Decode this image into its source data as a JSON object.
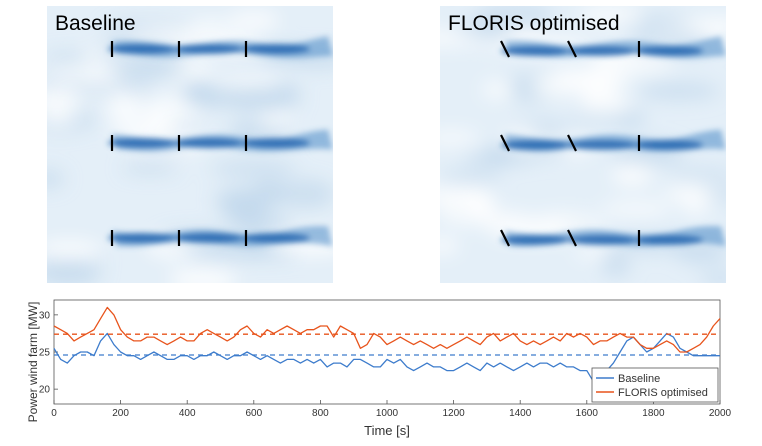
{
  "panels": {
    "left_title": "Baseline",
    "right_title": "FLORIS optimised"
  },
  "colors": {
    "baseline": "#3d7ccc",
    "optimised": "#e8541c",
    "wake": "#2a6fb8"
  },
  "chart_data": {
    "type": "line",
    "title": "",
    "xlabel": "Time [s]",
    "ylabel": "Power wind farm [MW]",
    "xlim": [
      0,
      2000
    ],
    "ylim": [
      18,
      32
    ],
    "xticks": [
      0,
      200,
      400,
      600,
      800,
      1000,
      1200,
      1400,
      1600,
      1800,
      2000
    ],
    "yticks": [
      20,
      25,
      30
    ],
    "legend": {
      "placement": "bottom-right",
      "entries": [
        "Baseline",
        "FLORIS optimised"
      ]
    },
    "means": {
      "Baseline": 24.6,
      "FLORIS optimised": 27.4
    },
    "series": [
      {
        "name": "Baseline",
        "x": [
          0,
          20,
          40,
          60,
          80,
          100,
          120,
          140,
          160,
          180,
          200,
          220,
          240,
          260,
          280,
          300,
          320,
          340,
          360,
          380,
          400,
          420,
          440,
          460,
          480,
          500,
          520,
          540,
          560,
          580,
          600,
          620,
          640,
          660,
          680,
          700,
          720,
          740,
          760,
          780,
          800,
          820,
          840,
          860,
          880,
          900,
          920,
          940,
          960,
          980,
          1000,
          1020,
          1040,
          1060,
          1080,
          1100,
          1120,
          1140,
          1160,
          1180,
          1200,
          1220,
          1240,
          1260,
          1280,
          1300,
          1320,
          1340,
          1360,
          1380,
          1400,
          1420,
          1440,
          1460,
          1480,
          1500,
          1520,
          1540,
          1560,
          1580,
          1600,
          1620,
          1640,
          1660,
          1680,
          1700,
          1720,
          1740,
          1760,
          1780,
          1800,
          1820,
          1840,
          1860,
          1880,
          1900,
          1920,
          1940,
          1960,
          1980,
          2000
        ],
        "values": [
          25.5,
          24.0,
          23.5,
          24.5,
          25.0,
          25.0,
          24.5,
          26.5,
          27.5,
          26.0,
          25.0,
          24.5,
          24.5,
          24.0,
          24.5,
          25.0,
          24.5,
          24.0,
          24.0,
          24.5,
          24.5,
          24.0,
          24.5,
          24.5,
          25.0,
          24.5,
          24.0,
          24.5,
          24.5,
          25.0,
          24.5,
          24.0,
          24.5,
          24.0,
          23.5,
          24.0,
          24.0,
          23.5,
          24.0,
          23.5,
          24.0,
          23.0,
          23.5,
          23.5,
          23.0,
          24.0,
          24.0,
          23.5,
          23.0,
          23.0,
          24.0,
          23.5,
          24.0,
          23.0,
          22.5,
          23.0,
          23.5,
          23.0,
          23.0,
          22.5,
          22.5,
          23.0,
          23.5,
          23.0,
          22.5,
          23.5,
          23.0,
          23.5,
          23.0,
          22.5,
          23.0,
          23.5,
          23.0,
          23.5,
          23.5,
          23.0,
          23.5,
          23.0,
          23.0,
          22.5,
          22.5,
          21.0,
          21.5,
          22.5,
          23.5,
          25.0,
          26.5,
          27.0,
          26.0,
          25.0,
          25.5,
          26.5,
          27.5,
          27.0,
          25.5,
          25.0,
          24.5,
          24.5,
          24.5,
          24.5,
          24.5
        ]
      },
      {
        "name": "FLORIS optimised",
        "x": [
          0,
          20,
          40,
          60,
          80,
          100,
          120,
          140,
          160,
          180,
          200,
          220,
          240,
          260,
          280,
          300,
          320,
          340,
          360,
          380,
          400,
          420,
          440,
          460,
          480,
          500,
          520,
          540,
          560,
          580,
          600,
          620,
          640,
          660,
          680,
          700,
          720,
          740,
          760,
          780,
          800,
          820,
          840,
          860,
          880,
          900,
          920,
          940,
          960,
          980,
          1000,
          1020,
          1040,
          1060,
          1080,
          1100,
          1120,
          1140,
          1160,
          1180,
          1200,
          1220,
          1240,
          1260,
          1280,
          1300,
          1320,
          1340,
          1360,
          1380,
          1400,
          1420,
          1440,
          1460,
          1480,
          1500,
          1520,
          1540,
          1560,
          1580,
          1600,
          1620,
          1640,
          1660,
          1680,
          1700,
          1720,
          1740,
          1760,
          1780,
          1800,
          1820,
          1840,
          1860,
          1880,
          1900,
          1920,
          1940,
          1960,
          1980,
          2000
        ],
        "values": [
          28.5,
          28.0,
          27.5,
          26.5,
          27.0,
          27.5,
          28.0,
          29.5,
          31.0,
          30.0,
          28.0,
          27.0,
          26.5,
          26.5,
          27.0,
          27.0,
          26.5,
          26.0,
          26.5,
          27.0,
          26.5,
          26.5,
          27.5,
          28.0,
          27.5,
          27.0,
          26.5,
          27.0,
          28.0,
          28.5,
          27.5,
          27.0,
          28.0,
          27.5,
          28.0,
          28.5,
          28.0,
          27.5,
          28.0,
          28.0,
          28.5,
          28.5,
          27.0,
          28.5,
          28.0,
          27.5,
          25.5,
          26.0,
          27.5,
          27.0,
          26.0,
          26.5,
          27.0,
          26.5,
          26.0,
          26.5,
          26.0,
          25.5,
          26.0,
          25.5,
          26.0,
          26.5,
          27.0,
          26.5,
          26.0,
          27.0,
          27.5,
          26.5,
          27.0,
          27.5,
          26.5,
          26.0,
          26.5,
          26.0,
          26.5,
          27.0,
          26.5,
          27.5,
          27.0,
          27.5,
          27.0,
          26.0,
          26.5,
          26.5,
          27.0,
          27.5,
          27.0,
          27.0,
          26.0,
          25.5,
          25.5,
          26.0,
          26.5,
          26.0,
          25.0,
          25.0,
          25.5,
          26.0,
          27.0,
          28.5,
          29.5
        ]
      }
    ]
  }
}
